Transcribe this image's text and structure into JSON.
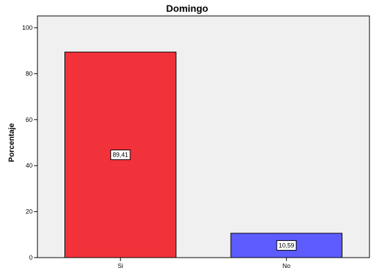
{
  "chart_data": {
    "type": "bar",
    "title": "Domingo",
    "xlabel": "",
    "ylabel": "Porcentaje",
    "categories": [
      "Si",
      "No"
    ],
    "values": [
      89.41,
      10.59
    ],
    "data_labels": [
      "89,41",
      "10,59"
    ],
    "ylim": [
      0,
      100
    ],
    "yticks": [
      0,
      20,
      40,
      60,
      80,
      100
    ],
    "ytick_labels": [
      "0",
      "20",
      "40",
      "60",
      "80",
      "100"
    ],
    "grid": false,
    "legend": "none",
    "bar_colors": [
      "#f2323a",
      "#5c5cff"
    ],
    "plot_background": "#f0f0f0"
  }
}
